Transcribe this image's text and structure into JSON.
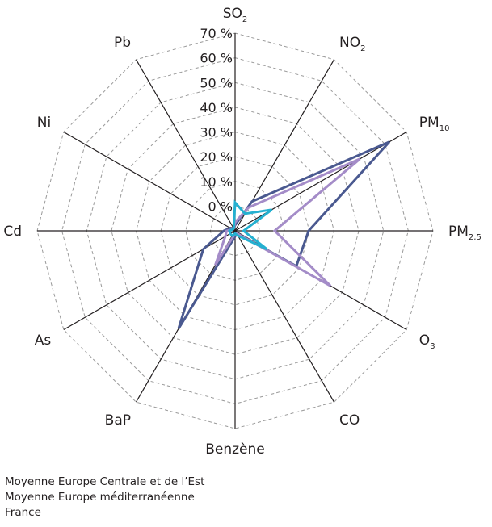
{
  "chart_data": {
    "type": "radar",
    "axes": [
      {
        "label": "SO",
        "sub": "2"
      },
      {
        "label": "NO",
        "sub": "2"
      },
      {
        "label": "PM",
        "sub": "10"
      },
      {
        "label": "PM",
        "sub": "2,5"
      },
      {
        "label": "O",
        "sub": "3"
      },
      {
        "label": "CO",
        "sub": ""
      },
      {
        "label": "Benzène",
        "sub": ""
      },
      {
        "label": "BaP",
        "sub": ""
      },
      {
        "label": "As",
        "sub": ""
      },
      {
        "label": "Cd",
        "sub": ""
      },
      {
        "label": "Ni",
        "sub": ""
      },
      {
        "label": "Pb",
        "sub": ""
      }
    ],
    "r_ticks": [
      "0 %",
      "10 %",
      "20 %",
      "30 %",
      "40 %",
      "50 %",
      "60 %",
      "70 %"
    ],
    "r_range": [
      0,
      70
    ],
    "grid": true,
    "series": [
      {
        "name": "Moyenne Europe Centrale et de l’Est",
        "color": "#4a5990",
        "values": [
          2,
          12,
          63,
          26,
          25,
          1,
          2,
          40,
          13,
          4,
          2,
          1
        ]
      },
      {
        "name": "Moyenne Europe méditerranéenne",
        "color": "#a48cc8",
        "values": [
          3,
          9.5,
          51,
          14,
          39,
          1,
          1,
          14,
          4,
          3,
          1,
          1
        ]
      },
      {
        "name": "France",
        "color": "#24b0d0",
        "values": [
          10,
          7,
          15,
          3,
          13,
          2,
          1,
          2,
          2,
          2,
          1,
          1
        ]
      }
    ]
  }
}
